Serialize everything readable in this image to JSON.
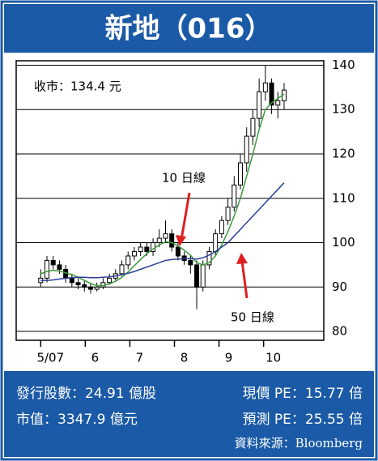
{
  "title": "新地（016）",
  "chart_data": {
    "type": "candlestick",
    "x": [
      5.0,
      5.14,
      5.28,
      5.42,
      5.56,
      5.7,
      5.84,
      5.98,
      6.12,
      6.26,
      6.4,
      6.54,
      6.68,
      6.82,
      6.96,
      7.1,
      7.24,
      7.38,
      7.52,
      7.66,
      7.8,
      7.94,
      8.08,
      8.22,
      8.36,
      8.5,
      8.64,
      8.78,
      8.92,
      9.06,
      9.2,
      9.34,
      9.48,
      9.62,
      9.76,
      9.9,
      10.04,
      10.18,
      10.32,
      10.46
    ],
    "open": [
      91,
      92,
      96,
      95,
      94,
      92,
      91,
      90.5,
      90,
      89.5,
      90,
      91,
      92,
      93,
      95,
      97,
      98,
      99,
      98,
      100,
      101,
      102,
      99,
      97,
      96,
      95,
      90,
      95,
      98,
      102,
      105,
      108,
      113,
      118,
      124,
      128,
      134,
      136,
      131,
      132
    ],
    "high": [
      94,
      97,
      97,
      96,
      95,
      93,
      92,
      91.5,
      91,
      91,
      92,
      93,
      94,
      96,
      98,
      99,
      100,
      100,
      101,
      103,
      105,
      103,
      100,
      98,
      97,
      96,
      96,
      99,
      103,
      106,
      110,
      115,
      120,
      126,
      130,
      137,
      140,
      137,
      134,
      136
    ],
    "low": [
      90,
      91,
      94,
      93,
      91,
      90,
      89.5,
      89,
      88.5,
      89,
      89.5,
      90.5,
      91.5,
      92.5,
      94,
      96,
      97,
      97,
      97,
      99,
      100,
      98,
      96,
      95,
      93,
      85,
      89,
      94,
      97,
      101,
      104,
      107,
      112,
      116,
      122,
      126,
      132,
      129,
      128,
      130
    ],
    "close": [
      92,
      96,
      95,
      94,
      92,
      91,
      90.5,
      90,
      89.5,
      90,
      91,
      92,
      93,
      95,
      97,
      98,
      99,
      98,
      100,
      101,
      102,
      99,
      97,
      96,
      95,
      90,
      95,
      98,
      102,
      105,
      108,
      113,
      118,
      124,
      128,
      134,
      136,
      131,
      132,
      134.4
    ],
    "series": [
      {
        "name": "10 日線",
        "color": "#3a9a3a",
        "values": [
          93,
          93.5,
          93.8,
          93.6,
          93.2,
          92.8,
          92.2,
          91.5,
          90.8,
          90.3,
          90.3,
          90.7,
          91.3,
          92.2,
          93.4,
          94.8,
          96.2,
          97.5,
          98.6,
          99.5,
          100.2,
          100,
          99.3,
          98.3,
          97.2,
          95.5,
          95,
          95.5,
          97,
          99.5,
          102.5,
          106,
          110,
          115,
          120,
          125.5,
          130,
          131.5,
          132.5,
          133.5
        ]
      },
      {
        "name": "50 日線",
        "color": "#2a3f9a",
        "values": [
          91.5,
          91.5,
          91.6,
          91.8,
          92,
          92.1,
          92.2,
          92.2,
          92.1,
          92.1,
          92.2,
          92.3,
          92.5,
          92.8,
          93.1,
          93.5,
          94,
          94.5,
          95,
          95.5,
          96,
          96.2,
          96.3,
          96.4,
          96.4,
          96.3,
          96.6,
          97.2,
          98,
          99,
          100,
          101.5,
          103,
          104.5,
          106,
          107.5,
          109,
          110.5,
          112,
          113.5
        ]
      }
    ],
    "xlim": [
      4.45,
      11.35
    ],
    "xticks": [
      {
        "value": 5,
        "label": "5/07"
      },
      6,
      7,
      8,
      9,
      10
    ],
    "ylim": [
      78,
      141
    ],
    "yticks": [
      80,
      90,
      100,
      110,
      120,
      130,
      140
    ],
    "grid": true,
    "annotation": "收市：134.4 元"
  },
  "footer": {
    "shares": "發行股數：24.91 億股",
    "pe_current": "現價 PE：15.77 倍",
    "market_cap": "市值：3347.9 億元",
    "pe_forecast": "預測 PE：25.55 倍",
    "source": "資料來源：Bloomberg"
  }
}
